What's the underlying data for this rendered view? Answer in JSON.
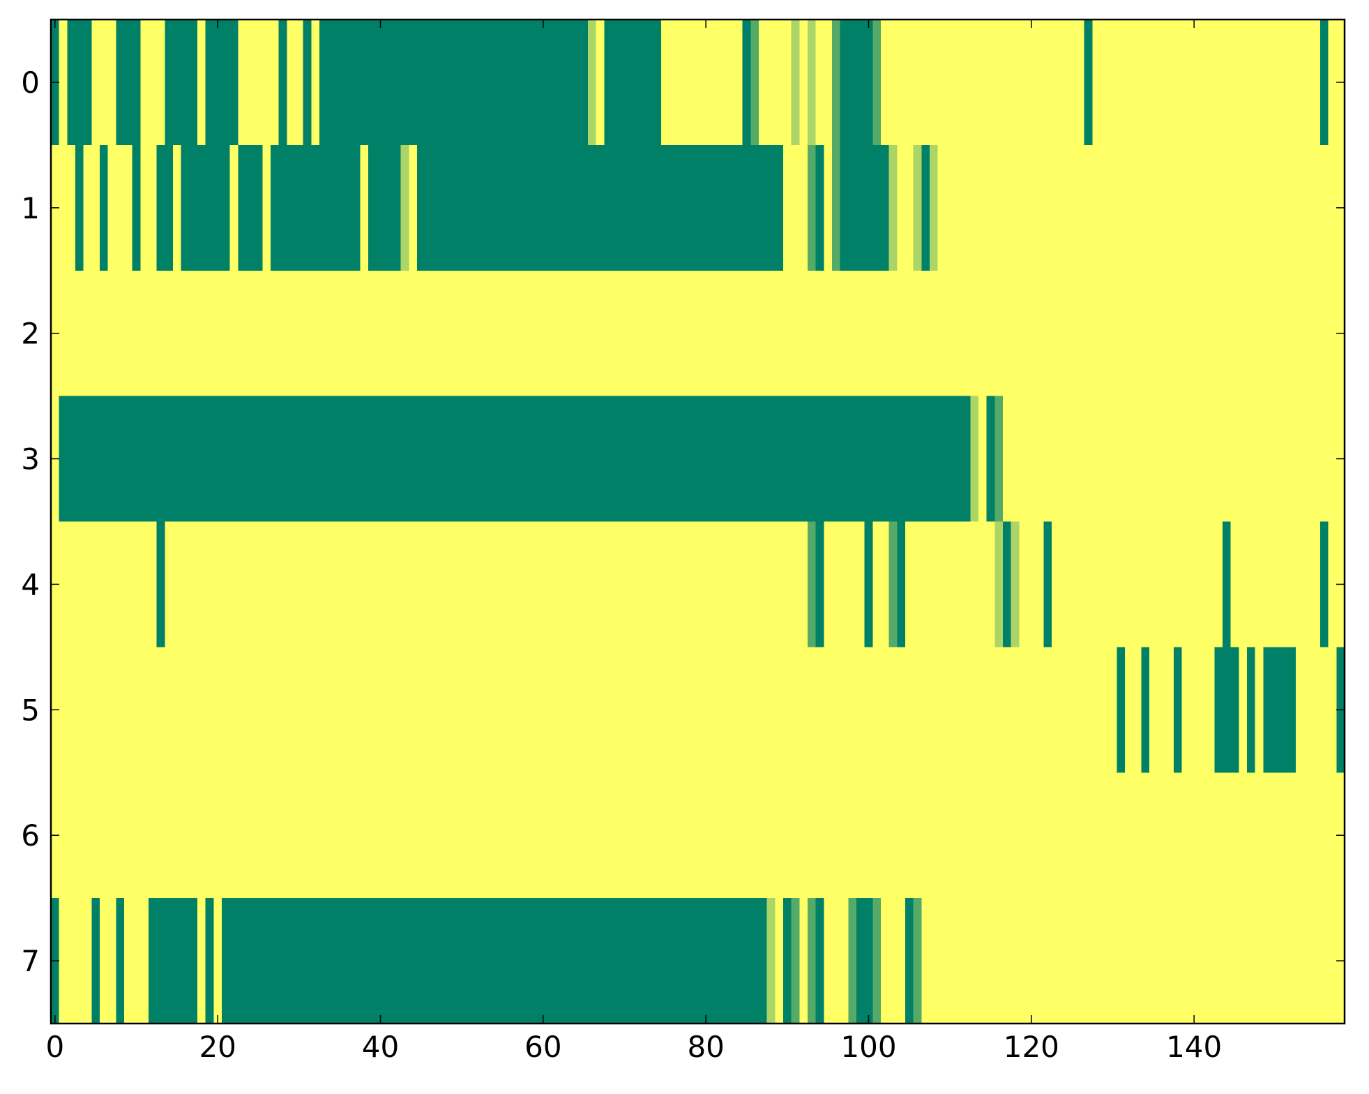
{
  "chart_data": {
    "type": "heatmap",
    "colormap": "summer",
    "xlim": [
      -0.5,
      158.5
    ],
    "ylim": [
      7.5,
      -0.5
    ],
    "xticks": [
      0,
      20,
      40,
      60,
      80,
      100,
      120,
      140
    ],
    "yticks": [
      0,
      1,
      2,
      3,
      4,
      5,
      6,
      7
    ],
    "values": [
      [
        0,
        1,
        0,
        0,
        0,
        1,
        1,
        1,
        0,
        0,
        0,
        1,
        1,
        1,
        0,
        0,
        0,
        0,
        1,
        0,
        0,
        0,
        0,
        1,
        1,
        1,
        1,
        1,
        0,
        1,
        1,
        0,
        1,
        0,
        0,
        0,
        0,
        0,
        0,
        0,
        0,
        0,
        0,
        0,
        0,
        0,
        0,
        0,
        0,
        0,
        0,
        0,
        0,
        0,
        0,
        0,
        0,
        0,
        0,
        0,
        0,
        0,
        0,
        0,
        0,
        0,
        0.67,
        1,
        0,
        0,
        0,
        0,
        0,
        0,
        0,
        1,
        1,
        1,
        1,
        1,
        1,
        1,
        1,
        1,
        1,
        0,
        0.33,
        1,
        1,
        1,
        1,
        0.67,
        1,
        0.67,
        1,
        1,
        0.33,
        0,
        0,
        0,
        0,
        0.33,
        1,
        1,
        1,
        1,
        1,
        1,
        1,
        1,
        1,
        1,
        1,
        1,
        1,
        1,
        1,
        1,
        1,
        1,
        1,
        1,
        1,
        1,
        1,
        1,
        1,
        0,
        1,
        1,
        1,
        1,
        1,
        1,
        1,
        1,
        1,
        1,
        1,
        1,
        1,
        1,
        1,
        1,
        1,
        1,
        1,
        1,
        1,
        1,
        1,
        1,
        1,
        1,
        1,
        1,
        0,
        1,
        1
      ],
      [
        1,
        1,
        1,
        0,
        1,
        1,
        0,
        1,
        1,
        1,
        0,
        1,
        1,
        0,
        0,
        1,
        0,
        0,
        0,
        0,
        0,
        0,
        1,
        0,
        0,
        0,
        1,
        0,
        0,
        0,
        0,
        0,
        0,
        0,
        0,
        0,
        0,
        0,
        1,
        0,
        0,
        0,
        0,
        0.67,
        1,
        0,
        0,
        0,
        0,
        0,
        0,
        0,
        0,
        0,
        0,
        0,
        0,
        0,
        0,
        0,
        0,
        0,
        0,
        0,
        0,
        0,
        0,
        0,
        0,
        0,
        0,
        0,
        0,
        0,
        0,
        0,
        0,
        0,
        0,
        0,
        0,
        0,
        0,
        0,
        0,
        0,
        0,
        0,
        0,
        0,
        1,
        1,
        1,
        0.33,
        0,
        1,
        0.33,
        0,
        0,
        0,
        0,
        0,
        0,
        0.67,
        1,
        1,
        0.67,
        0,
        0.67,
        1,
        1,
        1,
        1,
        1,
        1,
        1,
        1,
        1,
        1,
        1,
        1,
        1,
        1,
        1,
        1,
        1,
        1,
        1,
        1,
        1,
        1,
        1,
        1,
        1,
        1,
        1,
        1,
        1,
        1,
        1,
        1,
        1,
        1,
        1,
        1,
        1,
        1,
        1,
        1,
        1,
        1,
        1,
        1,
        1,
        1,
        1,
        1,
        1,
        1
      ],
      [
        1,
        1,
        1,
        1,
        1,
        1,
        1,
        1,
        1,
        1,
        1,
        1,
        1,
        1,
        1,
        1,
        1,
        1,
        1,
        1,
        1,
        1,
        1,
        1,
        1,
        1,
        1,
        1,
        1,
        1,
        1,
        1,
        1,
        1,
        1,
        1,
        1,
        1,
        1,
        1,
        1,
        1,
        1,
        1,
        1,
        1,
        1,
        1,
        1,
        1,
        1,
        1,
        1,
        1,
        1,
        1,
        1,
        1,
        1,
        1,
        1,
        1,
        1,
        1,
        1,
        1,
        1,
        1,
        1,
        1,
        1,
        1,
        1,
        1,
        1,
        1,
        1,
        1,
        1,
        1,
        1,
        1,
        1,
        1,
        1,
        1,
        1,
        1,
        1,
        1,
        1,
        1,
        1,
        1,
        1,
        1,
        1,
        1,
        1,
        1,
        1,
        1,
        1,
        1,
        1,
        1,
        1,
        1,
        1,
        1,
        1,
        1,
        1,
        1,
        1,
        1,
        1,
        1,
        1,
        1,
        1,
        1,
        1,
        1,
        1,
        1,
        1,
        1,
        1,
        1,
        1,
        1,
        1,
        1,
        1,
        1,
        1,
        1,
        1,
        1,
        1,
        1,
        1,
        1,
        1,
        1,
        1,
        1,
        1,
        1,
        1,
        1,
        1,
        1,
        1,
        1,
        1,
        1,
        1
      ],
      [
        1,
        0,
        0,
        0,
        0,
        0,
        0,
        0,
        0,
        0,
        0,
        0,
        0,
        0,
        0,
        0,
        0,
        0,
        0,
        0,
        0,
        0,
        0,
        0,
        0,
        0,
        0,
        0,
        0,
        0,
        0,
        0,
        0,
        0,
        0,
        0,
        0,
        0,
        0,
        0,
        0,
        0,
        0,
        0,
        0,
        0,
        0,
        0,
        0,
        0,
        0,
        0,
        0,
        0,
        0,
        0,
        0,
        0,
        0,
        0,
        0,
        0,
        0,
        0,
        0,
        0,
        0,
        0,
        0,
        0,
        0,
        0,
        0,
        0,
        0,
        0,
        0,
        0,
        0,
        0,
        0,
        0,
        0,
        0,
        0,
        0,
        0,
        0,
        0,
        0,
        0,
        0,
        0,
        0,
        0,
        0,
        0,
        0,
        0,
        0,
        0,
        0,
        0,
        0,
        0,
        0,
        0,
        0,
        0,
        0,
        0,
        0,
        0,
        0.67,
        1,
        0,
        0.33,
        1,
        1,
        1,
        1,
        1,
        1,
        1,
        1,
        1,
        1,
        1,
        1,
        1,
        1,
        1,
        1,
        1,
        1,
        1,
        1,
        1,
        1,
        1,
        1,
        1,
        1,
        1,
        1,
        1,
        1,
        1,
        1,
        1,
        1,
        1,
        1,
        1,
        1,
        1,
        1,
        1,
        1
      ],
      [
        1,
        1,
        1,
        1,
        1,
        1,
        1,
        1,
        1,
        1,
        1,
        1,
        1,
        0,
        1,
        1,
        1,
        1,
        1,
        1,
        1,
        1,
        1,
        1,
        1,
        1,
        1,
        1,
        1,
        1,
        1,
        1,
        1,
        1,
        1,
        1,
        1,
        1,
        1,
        1,
        1,
        1,
        1,
        1,
        1,
        1,
        1,
        1,
        1,
        1,
        1,
        1,
        1,
        1,
        1,
        1,
        1,
        1,
        1,
        1,
        1,
        1,
        1,
        1,
        1,
        1,
        1,
        1,
        1,
        1,
        1,
        1,
        1,
        1,
        1,
        1,
        1,
        1,
        1,
        1,
        1,
        1,
        1,
        1,
        1,
        1,
        1,
        1,
        1,
        1,
        1,
        1,
        1,
        0.33,
        0,
        1,
        1,
        1,
        1,
        1,
        0,
        1,
        1,
        0.33,
        0,
        1,
        1,
        1,
        1,
        1,
        1,
        1,
        1,
        1,
        1,
        1,
        0.67,
        0,
        0.67,
        1,
        1,
        1,
        0,
        1,
        1,
        1,
        1,
        1,
        1,
        1,
        1,
        1,
        1,
        1,
        1,
        1,
        1,
        1,
        1,
        1,
        1,
        1,
        1,
        1,
        0,
        1,
        1,
        1,
        1,
        1,
        1,
        1,
        1,
        1,
        1,
        1,
        0,
        1,
        1
      ],
      [
        1,
        1,
        1,
        1,
        1,
        1,
        1,
        1,
        1,
        1,
        1,
        1,
        1,
        1,
        1,
        1,
        1,
        1,
        1,
        1,
        1,
        1,
        1,
        1,
        1,
        1,
        1,
        1,
        1,
        1,
        1,
        1,
        1,
        1,
        1,
        1,
        1,
        1,
        1,
        1,
        1,
        1,
        1,
        1,
        1,
        1,
        1,
        1,
        1,
        1,
        1,
        1,
        1,
        1,
        1,
        1,
        1,
        1,
        1,
        1,
        1,
        1,
        1,
        1,
        1,
        1,
        1,
        1,
        1,
        1,
        1,
        1,
        1,
        1,
        1,
        1,
        1,
        1,
        1,
        1,
        1,
        1,
        1,
        1,
        1,
        1,
        1,
        1,
        1,
        1,
        1,
        1,
        1,
        1,
        1,
        1,
        1,
        1,
        1,
        1,
        1,
        1,
        1,
        1,
        1,
        1,
        1,
        1,
        1,
        1,
        1,
        1,
        1,
        1,
        1,
        1,
        1,
        1,
        1,
        1,
        1,
        1,
        1,
        1,
        1,
        1,
        1,
        1,
        1,
        1,
        1,
        0,
        1,
        1,
        0,
        1,
        1,
        1,
        0,
        1,
        1,
        1,
        1,
        0,
        0,
        0,
        1,
        0,
        1,
        0,
        0,
        0,
        0,
        1,
        1,
        1,
        1,
        1,
        0
      ],
      [
        1,
        1,
        1,
        1,
        1,
        1,
        1,
        1,
        1,
        1,
        1,
        1,
        1,
        1,
        1,
        1,
        1,
        1,
        1,
        1,
        1,
        1,
        1,
        1,
        1,
        1,
        1,
        1,
        1,
        1,
        1,
        1,
        1,
        1,
        1,
        1,
        1,
        1,
        1,
        1,
        1,
        1,
        1,
        1,
        1,
        1,
        1,
        1,
        1,
        1,
        1,
        1,
        1,
        1,
        1,
        1,
        1,
        1,
        1,
        1,
        1,
        1,
        1,
        1,
        1,
        1,
        1,
        1,
        1,
        1,
        1,
        1,
        1,
        1,
        1,
        1,
        1,
        1,
        1,
        1,
        1,
        1,
        1,
        1,
        1,
        1,
        1,
        1,
        1,
        1,
        1,
        1,
        1,
        1,
        1,
        1,
        1,
        1,
        1,
        1,
        1,
        1,
        1,
        1,
        1,
        1,
        1,
        1,
        1,
        1,
        1,
        1,
        1,
        1,
        1,
        1,
        1,
        1,
        1,
        1,
        1,
        1,
        1,
        1,
        1,
        1,
        1,
        1,
        1,
        1,
        1,
        1,
        1,
        1,
        1,
        1,
        1,
        1,
        1,
        1,
        1,
        1,
        1,
        1,
        1,
        1,
        1,
        1,
        1,
        1,
        1,
        1,
        1,
        1,
        1,
        1,
        1,
        1,
        1
      ],
      [
        0,
        1,
        1,
        1,
        1,
        0,
        1,
        1,
        0,
        1,
        1,
        1,
        0,
        0,
        0,
        0,
        0,
        0,
        1,
        0,
        1,
        0,
        0,
        0,
        0,
        0,
        0,
        0,
        0,
        0,
        0,
        0,
        0,
        0,
        0,
        0,
        0,
        0,
        0,
        0,
        0,
        0,
        0,
        0,
        0,
        0,
        0,
        0,
        0,
        0,
        0,
        0,
        0,
        0,
        0,
        0,
        0,
        0,
        0,
        0,
        0,
        0,
        0,
        0,
        0,
        0,
        0,
        0,
        0,
        0,
        0,
        0,
        0,
        0,
        0,
        0,
        0,
        0,
        0,
        0,
        0,
        0,
        0,
        0,
        0,
        0,
        0,
        0,
        0.67,
        1,
        0,
        0.33,
        1,
        0.33,
        0,
        1,
        1,
        1,
        0.33,
        0,
        0,
        0.33,
        1,
        1,
        1,
        0,
        0.33,
        1,
        1,
        1,
        1,
        1,
        1,
        1,
        1,
        1,
        1,
        1,
        1,
        1,
        1,
        1,
        1,
        1,
        1,
        1,
        1,
        1,
        1,
        1,
        1,
        1,
        1,
        1,
        1,
        1,
        1,
        1,
        1,
        1,
        1,
        1,
        1,
        1,
        1,
        1,
        1,
        1,
        1,
        1,
        1,
        1,
        1,
        1,
        1,
        1,
        1,
        1,
        1
      ]
    ]
  }
}
